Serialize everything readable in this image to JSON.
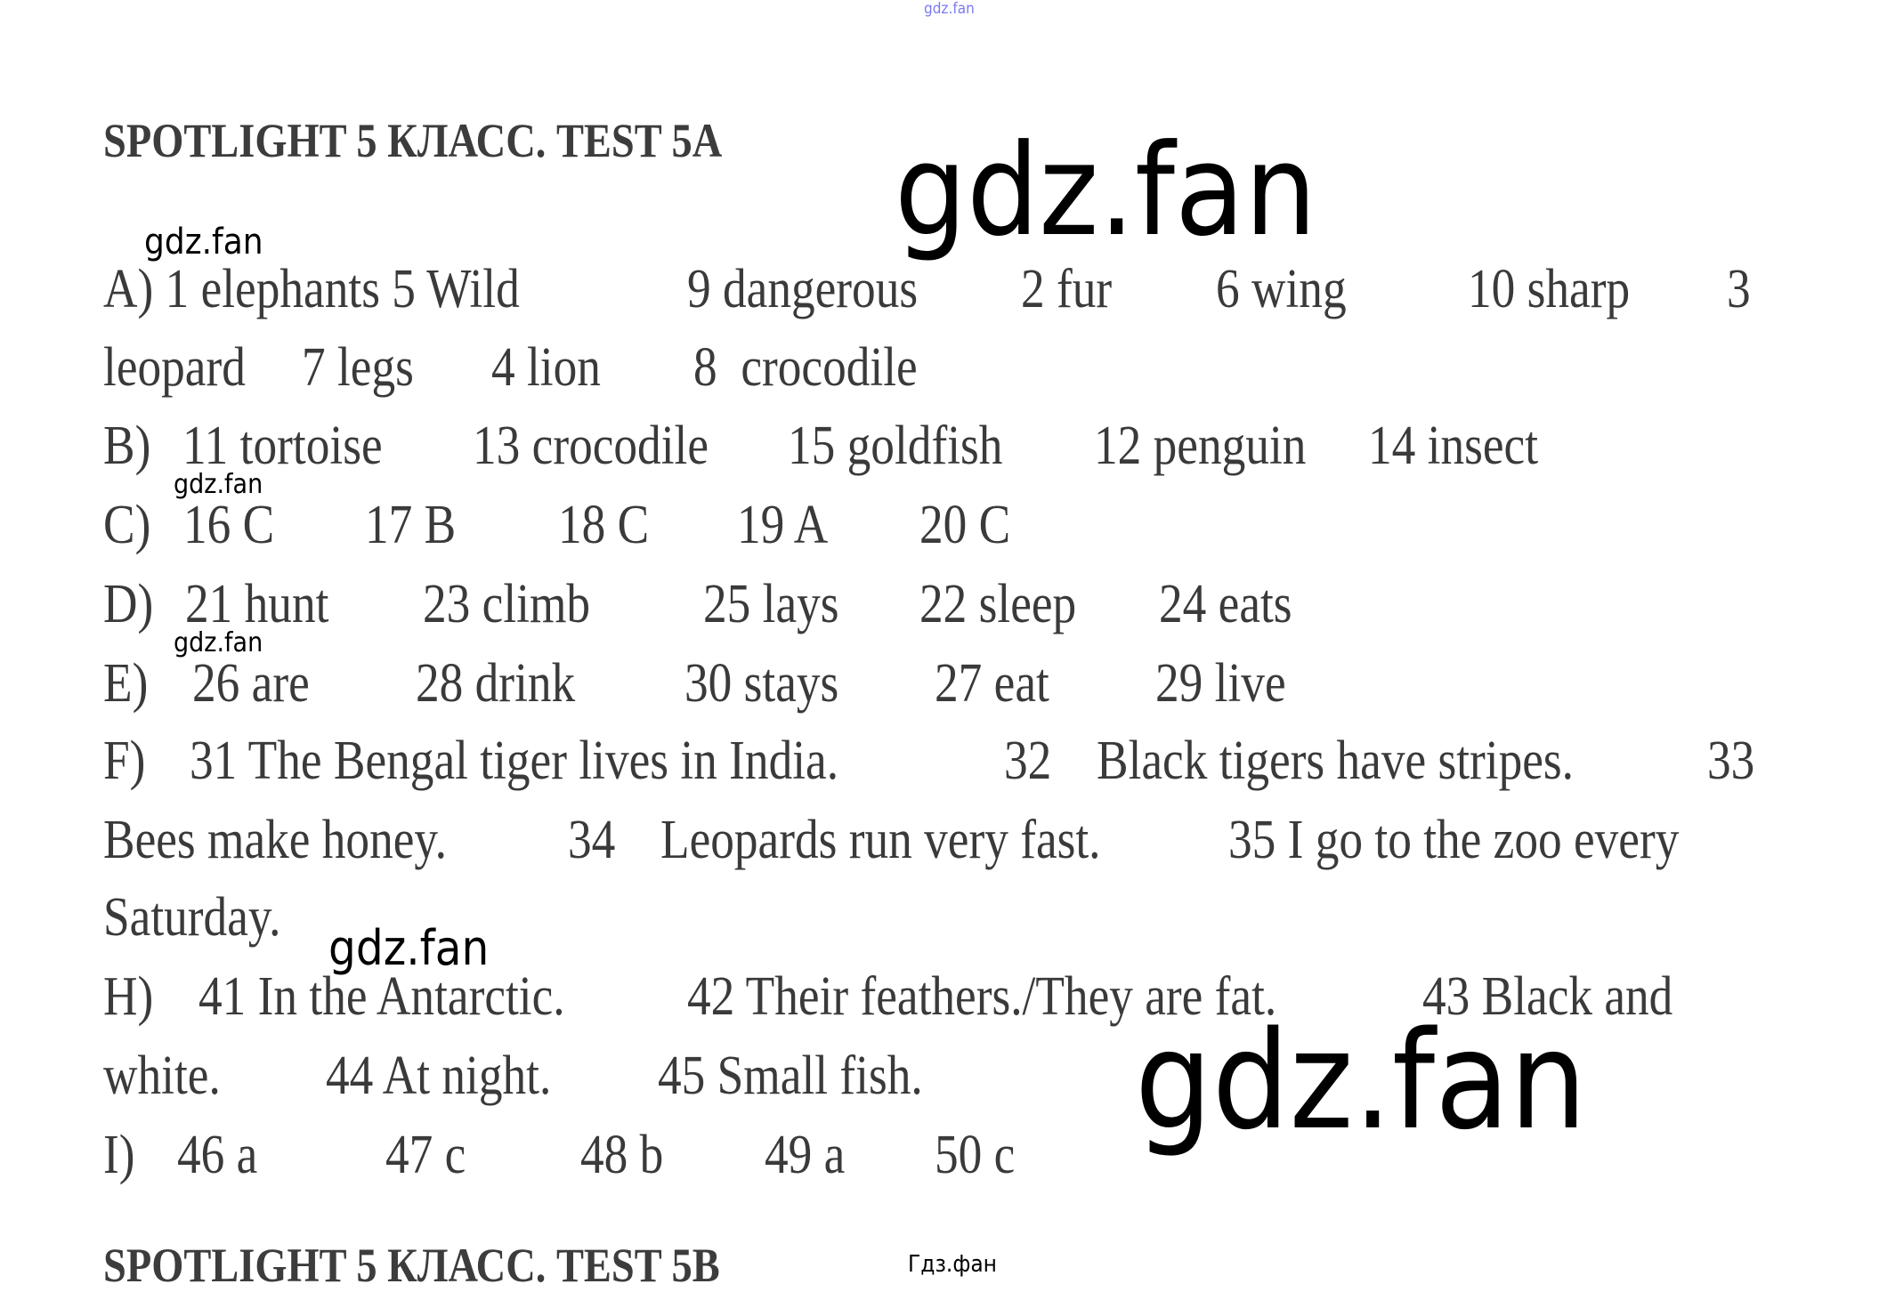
{
  "title": "SPOTLIGHT 5 КЛАСС. TEST 5A",
  "next_title": "SPOTLIGHT 5 КЛАСС. TEST 5B",
  "watermarks": {
    "top_small": "gdz.fan",
    "big_top": "gdz.fan",
    "w1": "gdz.fan",
    "w2": "gdz.fan",
    "w3": "gdz.fan",
    "w4": "gdz.fan",
    "big_bottom": "gdz.fan",
    "footer": "Гдз.фан"
  },
  "lines": {
    "a1": [
      "A) 1 elephants 5 Wild",
      "9 dangerous",
      "2 fur",
      "6 wing",
      "10 sharp",
      "3"
    ],
    "a2": [
      "leopard",
      "7 legs",
      "4 lion",
      "8  crocodile"
    ],
    "b": [
      "B)",
      "11 tortoise",
      "13 crocodile",
      "15 goldfish",
      "12 penguin",
      "14 insect"
    ],
    "c": [
      "C)",
      "16 C",
      "17 B",
      "18 C",
      "19 A",
      "20 C"
    ],
    "d": [
      "D)",
      "21 hunt",
      "23 climb",
      "25 lays",
      "22 sleep",
      "24 eats"
    ],
    "e": [
      "E)",
      "26 are",
      "28 drink",
      "30 stays",
      "27 eat",
      "29 live"
    ],
    "f1": [
      "F)",
      "31 The Bengal tiger lives in India.",
      "32",
      "Black tigers have stripes.",
      "33"
    ],
    "f2": [
      "Bees make honey.",
      "34",
      "Leopards run very fast.",
      "35 I go to the zoo every"
    ],
    "f3": [
      "Saturday."
    ],
    "h1": [
      "H)",
      "41 In the Antarctic.",
      "42 Their feathers./They are fat.",
      "43 Black and"
    ],
    "h2": [
      "white.",
      "44 At night.",
      "45 Small fish."
    ],
    "i": [
      "I)",
      "46 a",
      "47 c",
      "48 b",
      "49 a",
      "50 c"
    ]
  }
}
